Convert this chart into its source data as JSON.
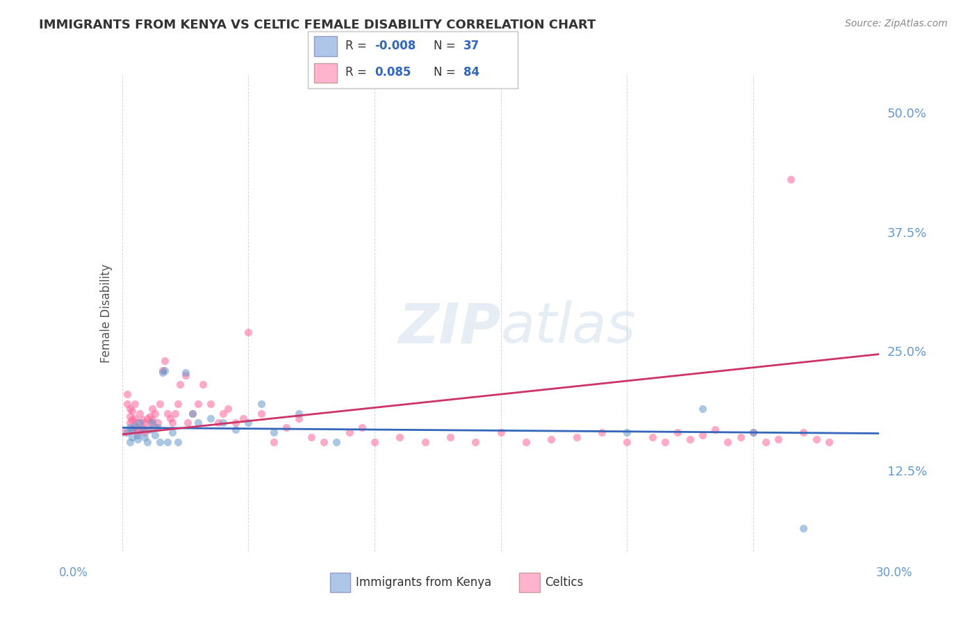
{
  "title": "IMMIGRANTS FROM KENYA VS CELTIC FEMALE DISABILITY CORRELATION CHART",
  "source": "Source: ZipAtlas.com",
  "ylabel": "Female Disability",
  "yticks": [
    "12.5%",
    "25.0%",
    "37.5%",
    "50.0%"
  ],
  "ytick_vals": [
    0.125,
    0.25,
    0.375,
    0.5
  ],
  "xmin": 0.0,
  "xmax": 0.3,
  "ymin": 0.04,
  "ymax": 0.54,
  "color_blue": "#6699CC",
  "color_pink": "#FF6699",
  "color_blue_light": "#AEC6E8",
  "color_pink_light": "#FFB3CC",
  "blue_scatter_x": [
    0.002,
    0.003,
    0.003,
    0.004,
    0.004,
    0.005,
    0.006,
    0.006,
    0.007,
    0.008,
    0.009,
    0.01,
    0.011,
    0.012,
    0.013,
    0.014,
    0.015,
    0.016,
    0.017,
    0.018,
    0.02,
    0.022,
    0.025,
    0.028,
    0.03,
    0.035,
    0.04,
    0.045,
    0.05,
    0.055,
    0.06,
    0.07,
    0.085,
    0.2,
    0.23,
    0.25,
    0.27
  ],
  "blue_scatter_y": [
    0.165,
    0.17,
    0.155,
    0.16,
    0.168,
    0.172,
    0.158,
    0.162,
    0.175,
    0.168,
    0.16,
    0.155,
    0.168,
    0.175,
    0.162,
    0.17,
    0.155,
    0.228,
    0.23,
    0.155,
    0.165,
    0.155,
    0.228,
    0.185,
    0.175,
    0.18,
    0.175,
    0.168,
    0.175,
    0.195,
    0.165,
    0.185,
    0.155,
    0.165,
    0.19,
    0.165,
    0.065
  ],
  "pink_scatter_x": [
    0.001,
    0.002,
    0.002,
    0.003,
    0.003,
    0.003,
    0.004,
    0.004,
    0.004,
    0.005,
    0.005,
    0.005,
    0.006,
    0.006,
    0.007,
    0.007,
    0.008,
    0.008,
    0.009,
    0.009,
    0.01,
    0.01,
    0.011,
    0.011,
    0.012,
    0.012,
    0.013,
    0.013,
    0.014,
    0.015,
    0.016,
    0.017,
    0.018,
    0.019,
    0.02,
    0.021,
    0.022,
    0.023,
    0.025,
    0.026,
    0.028,
    0.03,
    0.032,
    0.035,
    0.038,
    0.04,
    0.042,
    0.045,
    0.048,
    0.05,
    0.055,
    0.06,
    0.065,
    0.07,
    0.075,
    0.08,
    0.09,
    0.095,
    0.1,
    0.11,
    0.12,
    0.13,
    0.14,
    0.15,
    0.16,
    0.17,
    0.18,
    0.19,
    0.2,
    0.21,
    0.215,
    0.22,
    0.225,
    0.23,
    0.235,
    0.24,
    0.245,
    0.25,
    0.255,
    0.26,
    0.265,
    0.27,
    0.275,
    0.28
  ],
  "pink_scatter_y": [
    0.165,
    0.195,
    0.205,
    0.175,
    0.182,
    0.19,
    0.168,
    0.178,
    0.188,
    0.17,
    0.18,
    0.195,
    0.165,
    0.175,
    0.168,
    0.185,
    0.17,
    0.178,
    0.165,
    0.175,
    0.168,
    0.18,
    0.175,
    0.182,
    0.178,
    0.19,
    0.17,
    0.185,
    0.175,
    0.195,
    0.23,
    0.24,
    0.185,
    0.18,
    0.175,
    0.185,
    0.195,
    0.215,
    0.225,
    0.175,
    0.185,
    0.195,
    0.215,
    0.195,
    0.175,
    0.185,
    0.19,
    0.175,
    0.18,
    0.27,
    0.185,
    0.155,
    0.17,
    0.18,
    0.16,
    0.155,
    0.165,
    0.17,
    0.155,
    0.16,
    0.155,
    0.16,
    0.155,
    0.165,
    0.155,
    0.158,
    0.16,
    0.165,
    0.155,
    0.16,
    0.155,
    0.165,
    0.158,
    0.162,
    0.168,
    0.155,
    0.16,
    0.165,
    0.155,
    0.158,
    0.43,
    0.165,
    0.158,
    0.155
  ],
  "blue_line_intercept": 0.17,
  "blue_line_slope": -0.02,
  "pink_line_intercept": 0.163,
  "pink_line_slope": 0.28,
  "background_color": "#FFFFFF",
  "grid_color": "#CCCCCC",
  "axis_color": "#6699CC",
  "title_color": "#333333"
}
